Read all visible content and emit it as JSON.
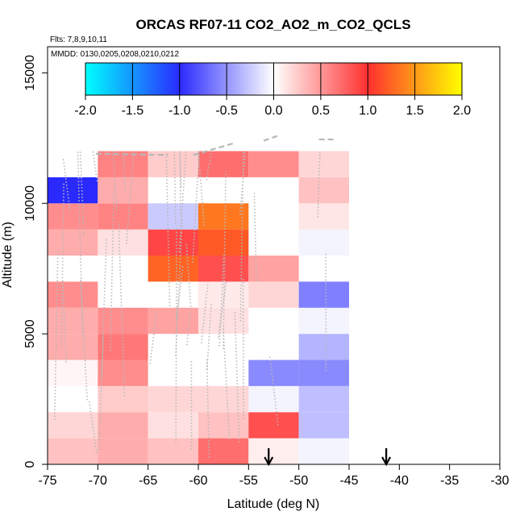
{
  "chart_data": {
    "type": "heatmap",
    "title": "ORCAS RF07-11 CO2_AO2_m_CO2_QCLS",
    "flights_label": "Flts: 7,8,9,10,11",
    "dates_label": "MMDD: 0130,0205,0208,0210,0212",
    "xlabel": "Latitude (deg N)",
    "ylabel": "Altitude (m)",
    "xlim": [
      -75,
      -30
    ],
    "ylim": [
      0,
      16000
    ],
    "x_ticks": [
      -75,
      -70,
      -65,
      -60,
      -55,
      -50,
      -45,
      -40,
      -35,
      -30
    ],
    "x_tick_labels": [
      "-75",
      "-70",
      "-65",
      "-60",
      "-55",
      "-50",
      "-45",
      "-40",
      "-35",
      "-30"
    ],
    "y_ticks": [
      0,
      5000,
      10000,
      15000
    ],
    "y_tick_labels": [
      "0",
      "5000",
      "10000",
      "15000"
    ],
    "colorbar": {
      "range": [
        -2.0,
        2.0
      ],
      "ticks": [
        -2.0,
        -1.5,
        -1.0,
        -0.5,
        0.0,
        0.5,
        1.0,
        1.5,
        2.0
      ],
      "tick_labels": [
        "-2.0",
        "-1.5",
        "-1.0",
        "-0.5",
        "0.0",
        "0.5",
        "1.0",
        "1.5",
        "2.0"
      ],
      "colors": {
        "cyan": "#00ffff",
        "blue": "#2a2aff",
        "white": "#ffffff",
        "red": "#ff3030",
        "yellow": "#ffff00"
      }
    },
    "cell_width_deg": 5,
    "cell_height_m": 1000,
    "cells": [
      {
        "lat": -75,
        "alt": 0,
        "v": 0.3
      },
      {
        "lat": -75,
        "alt": 1000,
        "v": 0.2
      },
      {
        "lat": -75,
        "alt": 3000,
        "v": 0.05
      },
      {
        "lat": -75,
        "alt": 4000,
        "v": 0.4
      },
      {
        "lat": -75,
        "alt": 5000,
        "v": 0.4
      },
      {
        "lat": -75,
        "alt": 6000,
        "v": 0.55
      },
      {
        "lat": -75,
        "alt": 8000,
        "v": 0.4
      },
      {
        "lat": -75,
        "alt": 9000,
        "v": 0.55
      },
      {
        "lat": -75,
        "alt": 10000,
        "v": -1.0
      },
      {
        "lat": -70,
        "alt": 0,
        "v": 0.4
      },
      {
        "lat": -70,
        "alt": 1000,
        "v": 0.4
      },
      {
        "lat": -70,
        "alt": 2000,
        "v": 0.25
      },
      {
        "lat": -70,
        "alt": 3000,
        "v": 0.55
      },
      {
        "lat": -70,
        "alt": 4000,
        "v": 0.65
      },
      {
        "lat": -70,
        "alt": 5000,
        "v": 0.55
      },
      {
        "lat": -70,
        "alt": 8000,
        "v": 0.15
      },
      {
        "lat": -70,
        "alt": 9000,
        "v": 0.6
      },
      {
        "lat": -70,
        "alt": 10000,
        "v": 0.4
      },
      {
        "lat": -70,
        "alt": 11000,
        "v": 0.6
      },
      {
        "lat": -65,
        "alt": 0,
        "v": 0.3
      },
      {
        "lat": -65,
        "alt": 1000,
        "v": 0.15
      },
      {
        "lat": -65,
        "alt": 2000,
        "v": 0.2
      },
      {
        "lat": -65,
        "alt": 5000,
        "v": 0.45
      },
      {
        "lat": -65,
        "alt": 7000,
        "v": 1.25
      },
      {
        "lat": -65,
        "alt": 8000,
        "v": 0.9
      },
      {
        "lat": -65,
        "alt": 9000,
        "v": -0.25
      },
      {
        "lat": -65,
        "alt": 11000,
        "v": 0.25
      },
      {
        "lat": -60,
        "alt": 0,
        "v": 0.7
      },
      {
        "lat": -60,
        "alt": 1000,
        "v": 0.3
      },
      {
        "lat": -60,
        "alt": 2000,
        "v": 0.2
      },
      {
        "lat": -60,
        "alt": 5000,
        "v": 0.15
      },
      {
        "lat": -60,
        "alt": 6000,
        "v": 0.1
      },
      {
        "lat": -60,
        "alt": 7000,
        "v": 0.85
      },
      {
        "lat": -60,
        "alt": 8000,
        "v": 1.2
      },
      {
        "lat": -60,
        "alt": 9000,
        "v": 1.35
      },
      {
        "lat": -60,
        "alt": 11000,
        "v": 0.7
      },
      {
        "lat": -55,
        "alt": 0,
        "v": 0.08
      },
      {
        "lat": -55,
        "alt": 1000,
        "v": 0.85
      },
      {
        "lat": -55,
        "alt": 2000,
        "v": -0.05
      },
      {
        "lat": -55,
        "alt": 3000,
        "v": -0.55
      },
      {
        "lat": -55,
        "alt": 6000,
        "v": 0.2
      },
      {
        "lat": -55,
        "alt": 7000,
        "v": 0.45
      },
      {
        "lat": -55,
        "alt": 11000,
        "v": 0.55
      },
      {
        "lat": -50,
        "alt": 0,
        "v": -0.05
      },
      {
        "lat": -50,
        "alt": 1000,
        "v": -0.3
      },
      {
        "lat": -50,
        "alt": 2000,
        "v": -0.3
      },
      {
        "lat": -50,
        "alt": 3000,
        "v": -0.55
      },
      {
        "lat": -50,
        "alt": 4000,
        "v": -0.35
      },
      {
        "lat": -50,
        "alt": 5000,
        "v": -0.05
      },
      {
        "lat": -50,
        "alt": 6000,
        "v": -0.6
      },
      {
        "lat": -50,
        "alt": 8000,
        "v": -0.05
      },
      {
        "lat": -50,
        "alt": 9000,
        "v": 0.12
      },
      {
        "lat": -50,
        "alt": 10000,
        "v": 0.3
      },
      {
        "lat": -50,
        "alt": 11000,
        "v": 0.2
      }
    ],
    "arrows_lat": [
      -53,
      -41.3
    ]
  }
}
